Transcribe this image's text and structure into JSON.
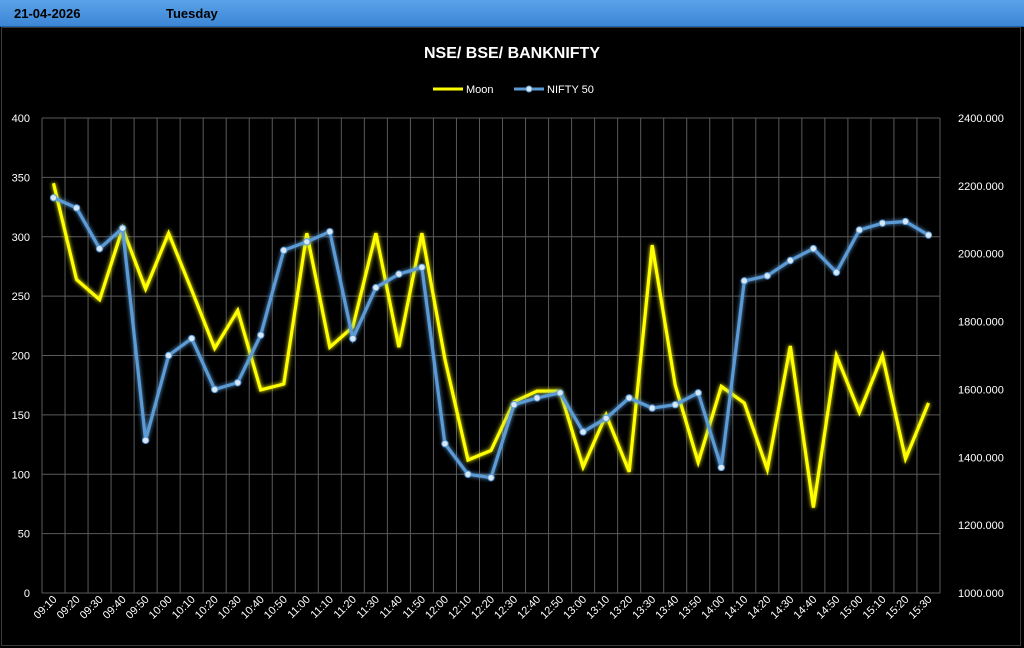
{
  "header": {
    "date": "21-04-2026",
    "day": "Tuesday"
  },
  "chart_data": {
    "type": "line",
    "title": "NSE/ BSE/ BANKNIFTY",
    "legend_placement": "top-center",
    "grid": true,
    "categories": [
      "09:10",
      "09:20",
      "09:30",
      "09:40",
      "09:50",
      "10:00",
      "10:10",
      "10:20",
      "10:30",
      "10:40",
      "10:50",
      "11:00",
      "11:10",
      "11:20",
      "11:30",
      "11:40",
      "11:50",
      "12:00",
      "12:10",
      "12:20",
      "12:30",
      "12:40",
      "12:50",
      "13:00",
      "13:10",
      "13:20",
      "13:30",
      "13:40",
      "13:50",
      "14:00",
      "14:10",
      "14:20",
      "14:30",
      "14:40",
      "14:50",
      "15:00",
      "15:10",
      "15:20",
      "15:30"
    ],
    "y_left": {
      "min": 0,
      "max": 400,
      "step": 50,
      "ticks": [
        "0",
        "50",
        "100",
        "150",
        "200",
        "250",
        "300",
        "350",
        "400"
      ]
    },
    "y_right": {
      "min": 1000,
      "max": 2400,
      "step": 200,
      "ticks": [
        "1000.000",
        "1200.000",
        "1400.000",
        "1600.000",
        "1800.000",
        "2000.000",
        "2200.000",
        "2400.000"
      ]
    },
    "series": [
      {
        "name": "Moon",
        "axis": "left",
        "color": "#ffff00",
        "markers": false,
        "values": [
          345,
          264,
          247,
          307,
          256,
          303,
          255,
          206,
          238,
          171,
          176,
          303,
          207,
          224,
          303,
          207,
          303,
          197,
          112,
          120,
          161,
          170,
          170,
          106,
          150,
          102,
          293,
          175,
          110,
          174,
          160,
          104,
          208,
          72,
          200,
          152,
          200,
          113,
          160
        ]
      },
      {
        "name": "NIFTY 50",
        "axis": "right",
        "color": "#5b9bd5",
        "markers": true,
        "values": [
          2165,
          2135,
          2015,
          2075,
          1450,
          1700,
          1750,
          1600,
          1620,
          1760,
          2010,
          2035,
          2065,
          1750,
          1900,
          1940,
          1960,
          1440,
          1350,
          1340,
          1555,
          1575,
          1590,
          1475,
          1515,
          1575,
          1545,
          1555,
          1590,
          1370,
          1920,
          1935,
          1980,
          2015,
          1945,
          2070,
          2090,
          2095,
          2055
        ]
      }
    ]
  }
}
